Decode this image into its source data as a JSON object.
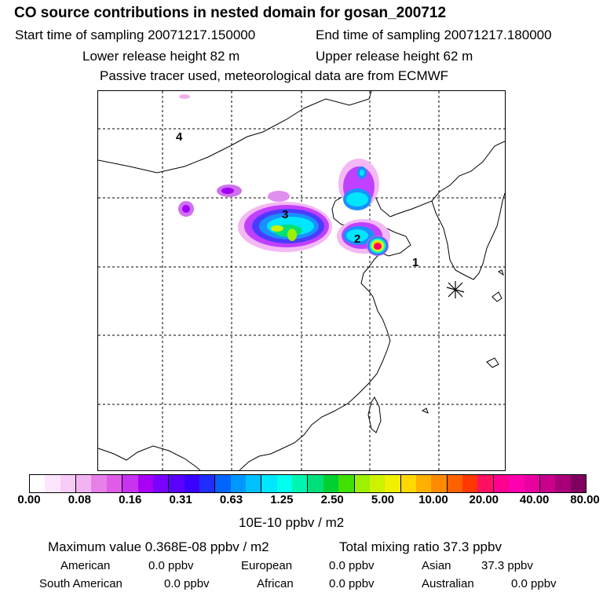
{
  "header": {
    "title": "CO  source contributions in nested domain for gosan_200712",
    "start_time": "Start time of sampling 20071217.150000",
    "end_time": "End time of sampling 20071217.180000",
    "lower_height": "Lower release height   82 m",
    "upper_height": "Upper release height   62 m",
    "note": "Passive tracer used, meteorological data are from ECMWF"
  },
  "map": {
    "region_labels": [
      "1",
      "2",
      "3",
      "4"
    ],
    "receptor_marker": "asterisk-icon",
    "plume_colors": [
      "#ff00ff",
      "#8a2be2",
      "#3366ff",
      "#00ccff",
      "#00ffcc",
      "#66ff33",
      "#ffff00",
      "#ff3300",
      "#ff0077"
    ]
  },
  "colorbar": {
    "colors": [
      "#ffffff",
      "#fde6fd",
      "#f8ccf8",
      "#f2b3f2",
      "#e87fe8",
      "#de5ce8",
      "#c733f0",
      "#a800f5",
      "#7a00ff",
      "#5a00ff",
      "#3a00ff",
      "#1f2dff",
      "#0064ff",
      "#0098ff",
      "#00c0ff",
      "#00e6ff",
      "#00ffee",
      "#00f5b0",
      "#00e07a",
      "#00d030",
      "#40e000",
      "#9cf000",
      "#ccf200",
      "#f0f000",
      "#ffd800",
      "#ffb000",
      "#ff8a00",
      "#ff6000",
      "#ff3800",
      "#ff1060",
      "#ff0090",
      "#ff00b0",
      "#e800a0",
      "#c8008c",
      "#a80078",
      "#800060"
    ],
    "ticks": [
      "0.00",
      "0.08",
      "0.16",
      "0.31",
      "0.63",
      "1.25",
      "2.50",
      "5.00",
      "10.00",
      "20.00",
      "40.00",
      "80.00"
    ],
    "unit": "10E-10 ppbv / m2"
  },
  "summary": {
    "max_value": "Maximum value  0.368E-08 ppbv / m2",
    "total_mixing": "Total mixing ratio       37.3 ppbv",
    "american_label": "American",
    "american_value": "0.0 ppbv",
    "european_label": "European",
    "european_value": "0.0 ppbv",
    "asian_label": "Asian",
    "asian_value": "37.3 ppbv",
    "south_american_label": "South American",
    "south_american_value": "0.0 ppbv",
    "african_label": "African",
    "african_value": "0.0 ppbv",
    "australian_label": "Australian",
    "australian_value": "0.0 ppbv"
  }
}
